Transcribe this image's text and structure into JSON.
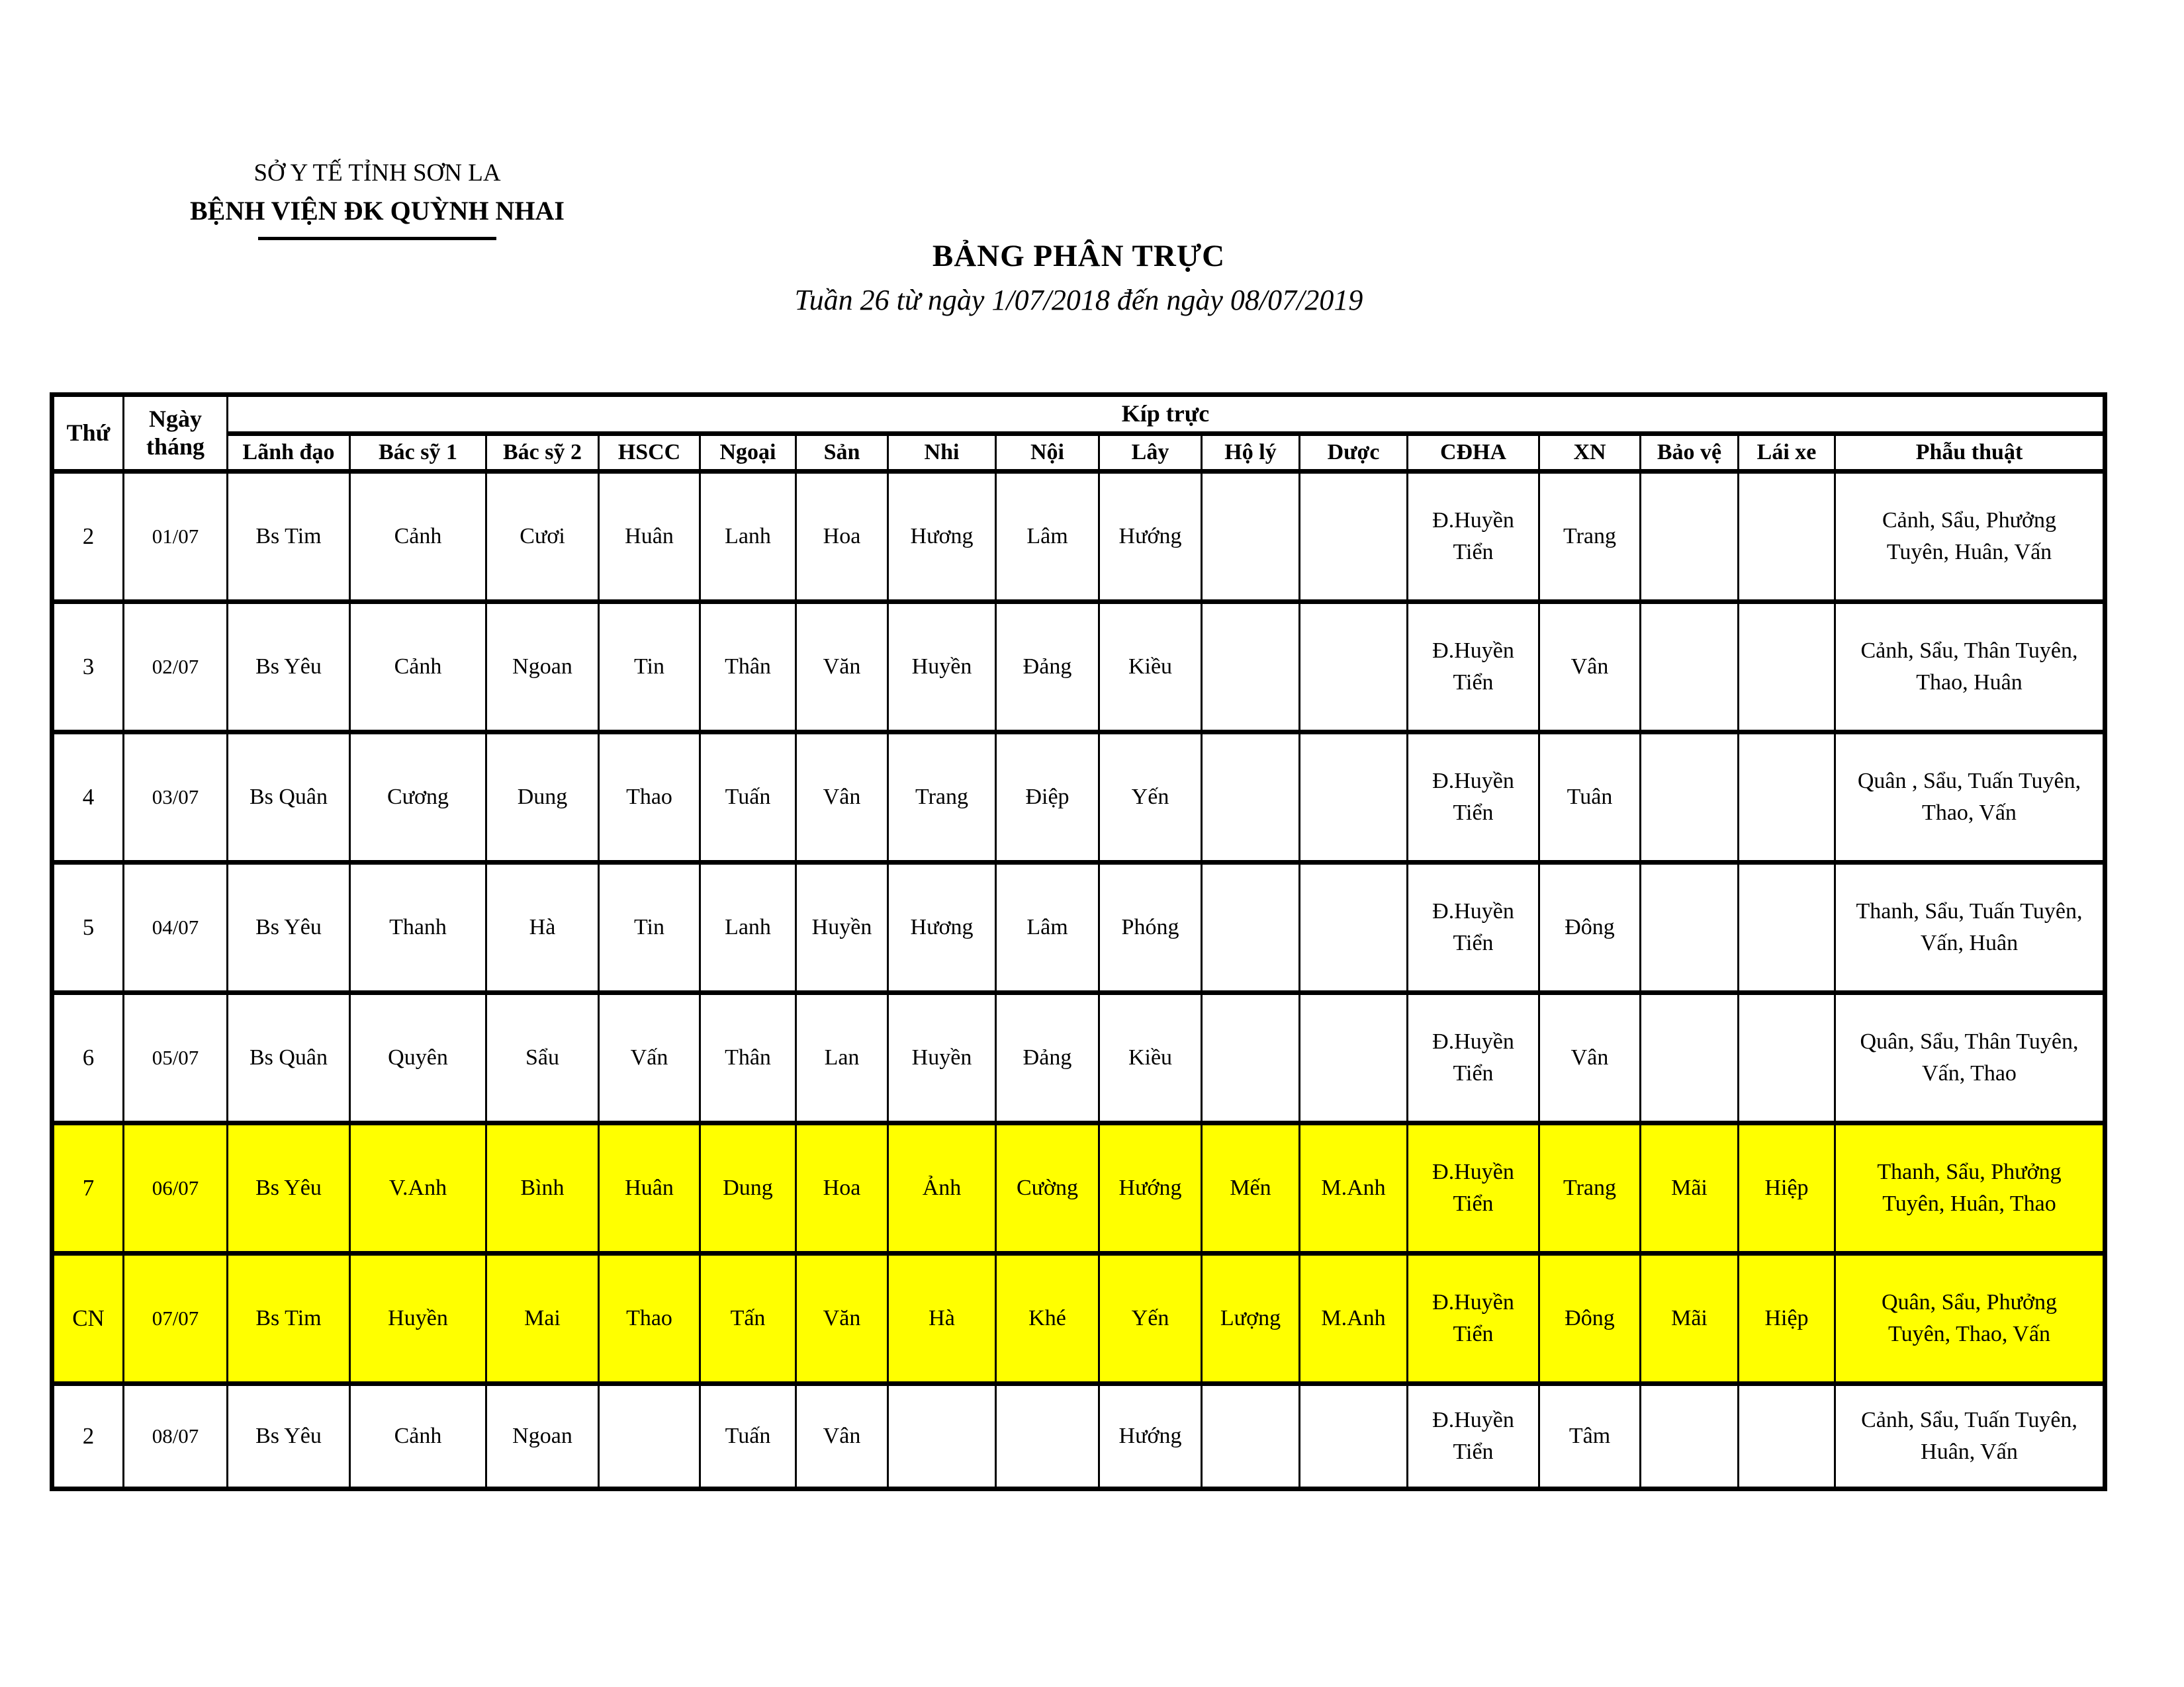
{
  "page": {
    "background": "#FFFFFF",
    "text_color": "#000000",
    "highlight_color": "#FFFF00"
  },
  "header": {
    "org_line1": "SỞ Y TẾ TỈNH SƠN LA",
    "org_line2": "BỆNH VIỆN ĐK QUỲNH NHAI",
    "title": "BẢNG PHÂN TRỰC",
    "subtitle": "Tuần 26 từ ngày 1/07/2018 đến ngày 08/07/2019"
  },
  "table": {
    "col_thu": "Thứ",
    "col_ngay_thang": "Ngày tháng",
    "group_header": "Kíp trực",
    "columns": [
      "Lãnh đạo",
      "Bác sỹ 1",
      "Bác sỹ 2",
      "HSCC",
      "Ngoại",
      "Sản",
      "Nhi",
      "Nội",
      "Lây",
      "Hộ lý",
      "Dược",
      "CĐHA",
      "XN",
      "Bảo vệ",
      "Lái xe",
      "Phẫu thuật"
    ],
    "rows": [
      {
        "thu": "2",
        "ngay": "01/07",
        "highlight": false,
        "cells": [
          "Bs Tim",
          "Cảnh",
          "Cươi",
          "Huân",
          "Lanh",
          "Hoa",
          "Hương",
          "Lâm",
          "Hướng",
          "",
          "",
          "Đ.Huyền Tiển",
          "Trang",
          "",
          "",
          "Cảnh, Sẩu, Phưởng Tuyên, Huân, Vấn"
        ]
      },
      {
        "thu": "3",
        "ngay": "02/07",
        "highlight": false,
        "cells": [
          "Bs Yêu",
          "Cảnh",
          "Ngoan",
          "Tin",
          "Thân",
          "Văn",
          "Huyền",
          "Đảng",
          "Kiều",
          "",
          "",
          "Đ.Huyền Tiển",
          "Vân",
          "",
          "",
          "Cảnh, Sẩu, Thân Tuyên, Thao, Huân"
        ]
      },
      {
        "thu": "4",
        "ngay": "03/07",
        "highlight": false,
        "cells": [
          "Bs Quân",
          "Cương",
          "Dung",
          "Thao",
          "Tuấn",
          "Vân",
          "Trang",
          "Điệp",
          "Yến",
          "",
          "",
          "Đ.Huyền Tiển",
          "Tuân",
          "",
          "",
          "Quân , Sẩu, Tuấn Tuyên, Thao, Vấn"
        ]
      },
      {
        "thu": "5",
        "ngay": "04/07",
        "highlight": false,
        "cells": [
          "Bs Yêu",
          "Thanh",
          "Hà",
          "Tin",
          "Lanh",
          "Huyền",
          "Hương",
          "Lâm",
          "Phóng",
          "",
          "",
          "Đ.Huyền Tiển",
          "Đông",
          "",
          "",
          "Thanh, Sẩu, Tuấn Tuyên, Vấn, Huân"
        ]
      },
      {
        "thu": "6",
        "ngay": "05/07",
        "highlight": false,
        "cells": [
          "Bs Quân",
          "Quyên",
          "Sẩu",
          "Vấn",
          "Thân",
          "Lan",
          "Huyền",
          "Đảng",
          "Kiều",
          "",
          "",
          "Đ.Huyền Tiển",
          "Vân",
          "",
          "",
          "Quân, Sẩu, Thân Tuyên, Vấn, Thao"
        ]
      },
      {
        "thu": "7",
        "ngay": "06/07",
        "highlight": true,
        "cells": [
          "Bs Yêu",
          "V.Anh",
          "Bình",
          "Huân",
          "Dung",
          "Hoa",
          "Ảnh",
          "Cường",
          "Hướng",
          "Mến",
          "M.Anh",
          "Đ.Huyền Tiển",
          "Trang",
          "Mãi",
          "Hiệp",
          "Thanh, Sẩu, Phưởng Tuyên, Huân, Thao"
        ]
      },
      {
        "thu": "CN",
        "ngay": "07/07",
        "highlight": true,
        "cells": [
          "Bs Tim",
          "Huyền",
          "Mai",
          "Thao",
          "Tấn",
          "Văn",
          "Hà",
          "Khé",
          "Yến",
          "Lượng",
          "M.Anh",
          "Đ.Huyền Tiển",
          "Đông",
          "Mãi",
          "Hiệp",
          "Quân, Sẩu, Phưởng Tuyên, Thao, Vấn"
        ]
      },
      {
        "thu": "2",
        "ngay": "08/07",
        "highlight": false,
        "cells": [
          "Bs Yêu",
          "Cảnh",
          "Ngoan",
          "",
          "Tuấn",
          "Vân",
          "",
          "",
          "Hướng",
          "",
          "",
          "Đ.Huyền Tiển",
          "Tâm",
          "",
          "",
          "Cảnh, Sẩu, Tuấn Tuyên, Huân, Vấn"
        ]
      }
    ]
  }
}
